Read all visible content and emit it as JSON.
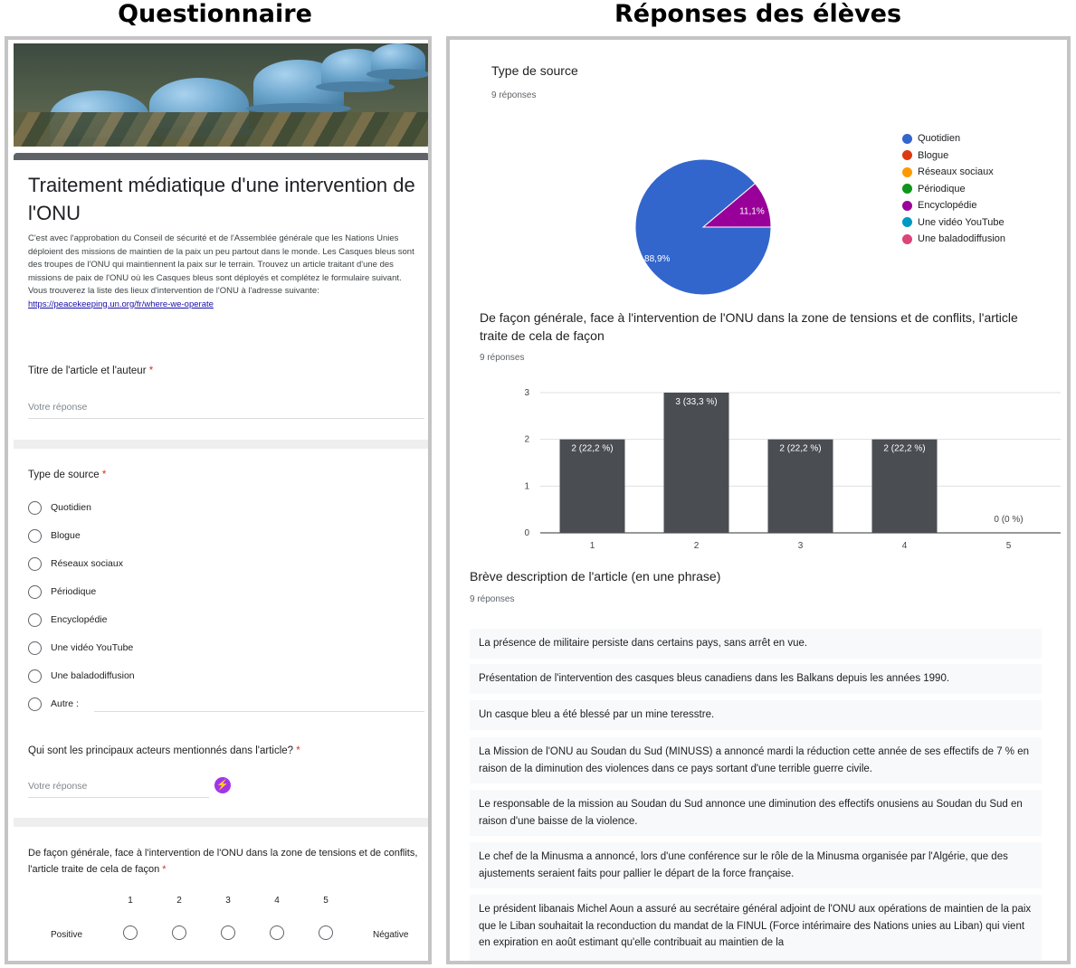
{
  "headings": {
    "left": "Questionnaire",
    "right": "Réponses des élèves"
  },
  "form": {
    "title": "Traitement médiatique d'une intervention de l'ONU",
    "description": [
      "C'est avec l'approbation du Conseil de sécurité et de l'Assemblée générale que les Nations Unies déploient des missions de maintien de la paix un peu partout dans le monde. Les Casques bleus sont des troupes de l'ONU qui maintiennent la paix sur le terrain. Trouvez un article traitant d'une des missions de paix de l'ONU où les Casques bleus sont déployés et complétez le formulaire suivant.",
      "Vous trouverez la liste des lieux d'intervention de l'ONU à l'adresse suivante:"
    ],
    "link": "https://peacekeeping.un.org/fr/where-we-operate",
    "q1": {
      "label": "Titre de l'article et l'auteur",
      "required_mark": "*",
      "placeholder": "Votre réponse"
    },
    "q2": {
      "label": "Type de source",
      "required_mark": "*",
      "options": [
        "Quotidien",
        "Blogue",
        "Réseaux sociaux",
        "Périodique",
        "Encyclopédie",
        "Une vidéo YouTube",
        "Une baladodiffusion",
        "Autre :"
      ]
    },
    "q3": {
      "label": "Qui sont les principaux acteurs mentionnés dans l'article?",
      "required_mark": "*",
      "placeholder": "Votre réponse"
    },
    "q4": {
      "label": "De façon générale, face à l'intervention de l'ONU dans la zone de tensions et de conflits, l'article traite de cela de façon",
      "required_mark": "*",
      "scale": [
        "1",
        "2",
        "3",
        "4",
        "5"
      ],
      "low_label": "Positive",
      "high_label": "Négative"
    }
  },
  "responses": {
    "pie_section": {
      "title": "Type de source",
      "count": "9 réponses"
    },
    "bar_section": {
      "title": "De façon générale, face à l'intervention de l'ONU dans la zone de tensions et de conflits, l'article traite de cela de façon",
      "count": "9 réponses"
    },
    "desc_section": {
      "title": "Brève description de l'article (en une phrase)",
      "count": "9 réponses",
      "items": [
        "La présence de militaire persiste dans certains pays, sans arrêt en vue.",
        "Présentation de l'intervention des casques bleus canadiens dans les Balkans depuis les années 1990.",
        "Un casque bleu a été blessé par un mine teresstre.",
        "La Mission de l'ONU au Soudan du Sud (MINUSS) a annoncé mardi la réduction cette année de ses effectifs de 7 % en raison de la diminution des violences dans ce pays sortant d'une terrible guerre civile.",
        "Le responsable de la mission au Soudan du Sud annonce une diminution des effectifs onusiens au Soudan du Sud en raison d'une baisse de la violence.",
        "Le chef de la Minusma a annoncé, lors d'une conférence sur le rôle de la Minusma organisée par l'Algérie, que des ajustements seraient faits pour pallier le départ de la force française.",
        "Le président libanais Michel Aoun a assuré au secrétaire général adjoint de l'ONU aux opérations de maintien de la paix que le Liban souhaitait la reconduction du mandat de la FINUL (Force intérimaire des Nations unies au Liban) qui vient en expiration en août estimant qu'elle contribuait au maintien de la"
      ]
    }
  },
  "chart_data": [
    {
      "type": "pie",
      "title": "Type de source",
      "categories": [
        "Quotidien",
        "Blogue",
        "Réseaux sociaux",
        "Périodique",
        "Encyclopédie",
        "Une vidéo YouTube",
        "Une baladodiffusion"
      ],
      "values": [
        8,
        0,
        0,
        0,
        1,
        0,
        0
      ],
      "labels": [
        "88,9%",
        "",
        "",
        "",
        "11,1%",
        "",
        ""
      ],
      "colors": [
        "#3366cc",
        "#dc3912",
        "#ff9900",
        "#109618",
        "#990099",
        "#0099c6",
        "#dd4477"
      ],
      "legend": "right"
    },
    {
      "type": "bar",
      "title": "De façon générale, face à l'intervention de l'ONU dans la zone de tensions et de conflits, l'article traite de cela de façon",
      "categories": [
        "1",
        "2",
        "3",
        "4",
        "5"
      ],
      "values": [
        2,
        3,
        2,
        2,
        0
      ],
      "data_labels": [
        "2 (22,2 %)",
        "3 (33,3 %)",
        "2 (22,2 %)",
        "2 (22,2 %)",
        "0 (0 %)"
      ],
      "yticks": [
        "0",
        "1",
        "2",
        "3"
      ],
      "ylim": [
        0,
        3
      ],
      "color": "#4a4d52",
      "grid": true
    }
  ]
}
